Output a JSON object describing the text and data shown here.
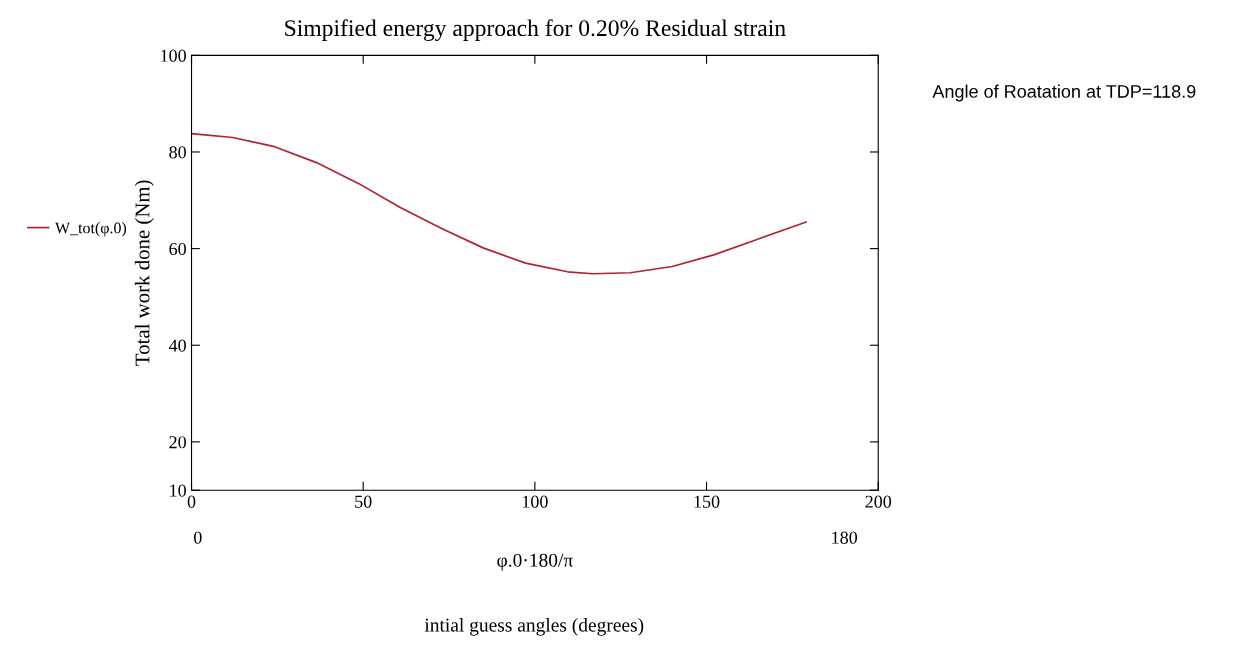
{
  "chart_data": {
    "type": "line",
    "title": "Simpified energy approach for 0.20% Residual strain",
    "xlabel": "φ.0·180/π",
    "ylabel": "Total work done (Nm)",
    "x": [
      0,
      12,
      24.2,
      36.4,
      48.6,
      60.8,
      73,
      85.1,
      97.3,
      109.5,
      116.8,
      127.8,
      140,
      152.1,
      164.3,
      179
    ],
    "series": [
      {
        "name": "W_tot(φ.0)",
        "color": "#b22234",
        "values": [
          83.8,
          83,
          81.1,
          77.8,
          73.5,
          68.5,
          64.1,
          60.1,
          57,
          55.2,
          54.8,
          55,
          56.3,
          58.7,
          61.8,
          65.5
        ]
      }
    ],
    "xlim": [
      0,
      200
    ],
    "xticks": [
      0,
      50,
      100,
      150,
      200
    ],
    "ylim": [
      10,
      100
    ],
    "yticks": [
      10,
      20,
      40,
      60,
      80,
      100
    ],
    "legend": "left",
    "grid": false,
    "marker": "none",
    "line_style": "solid",
    "annotations": [
      "0",
      "180",
      "intial guess angles (degrees)",
      "Angle of Roatation at TDP=118.9"
    ]
  }
}
